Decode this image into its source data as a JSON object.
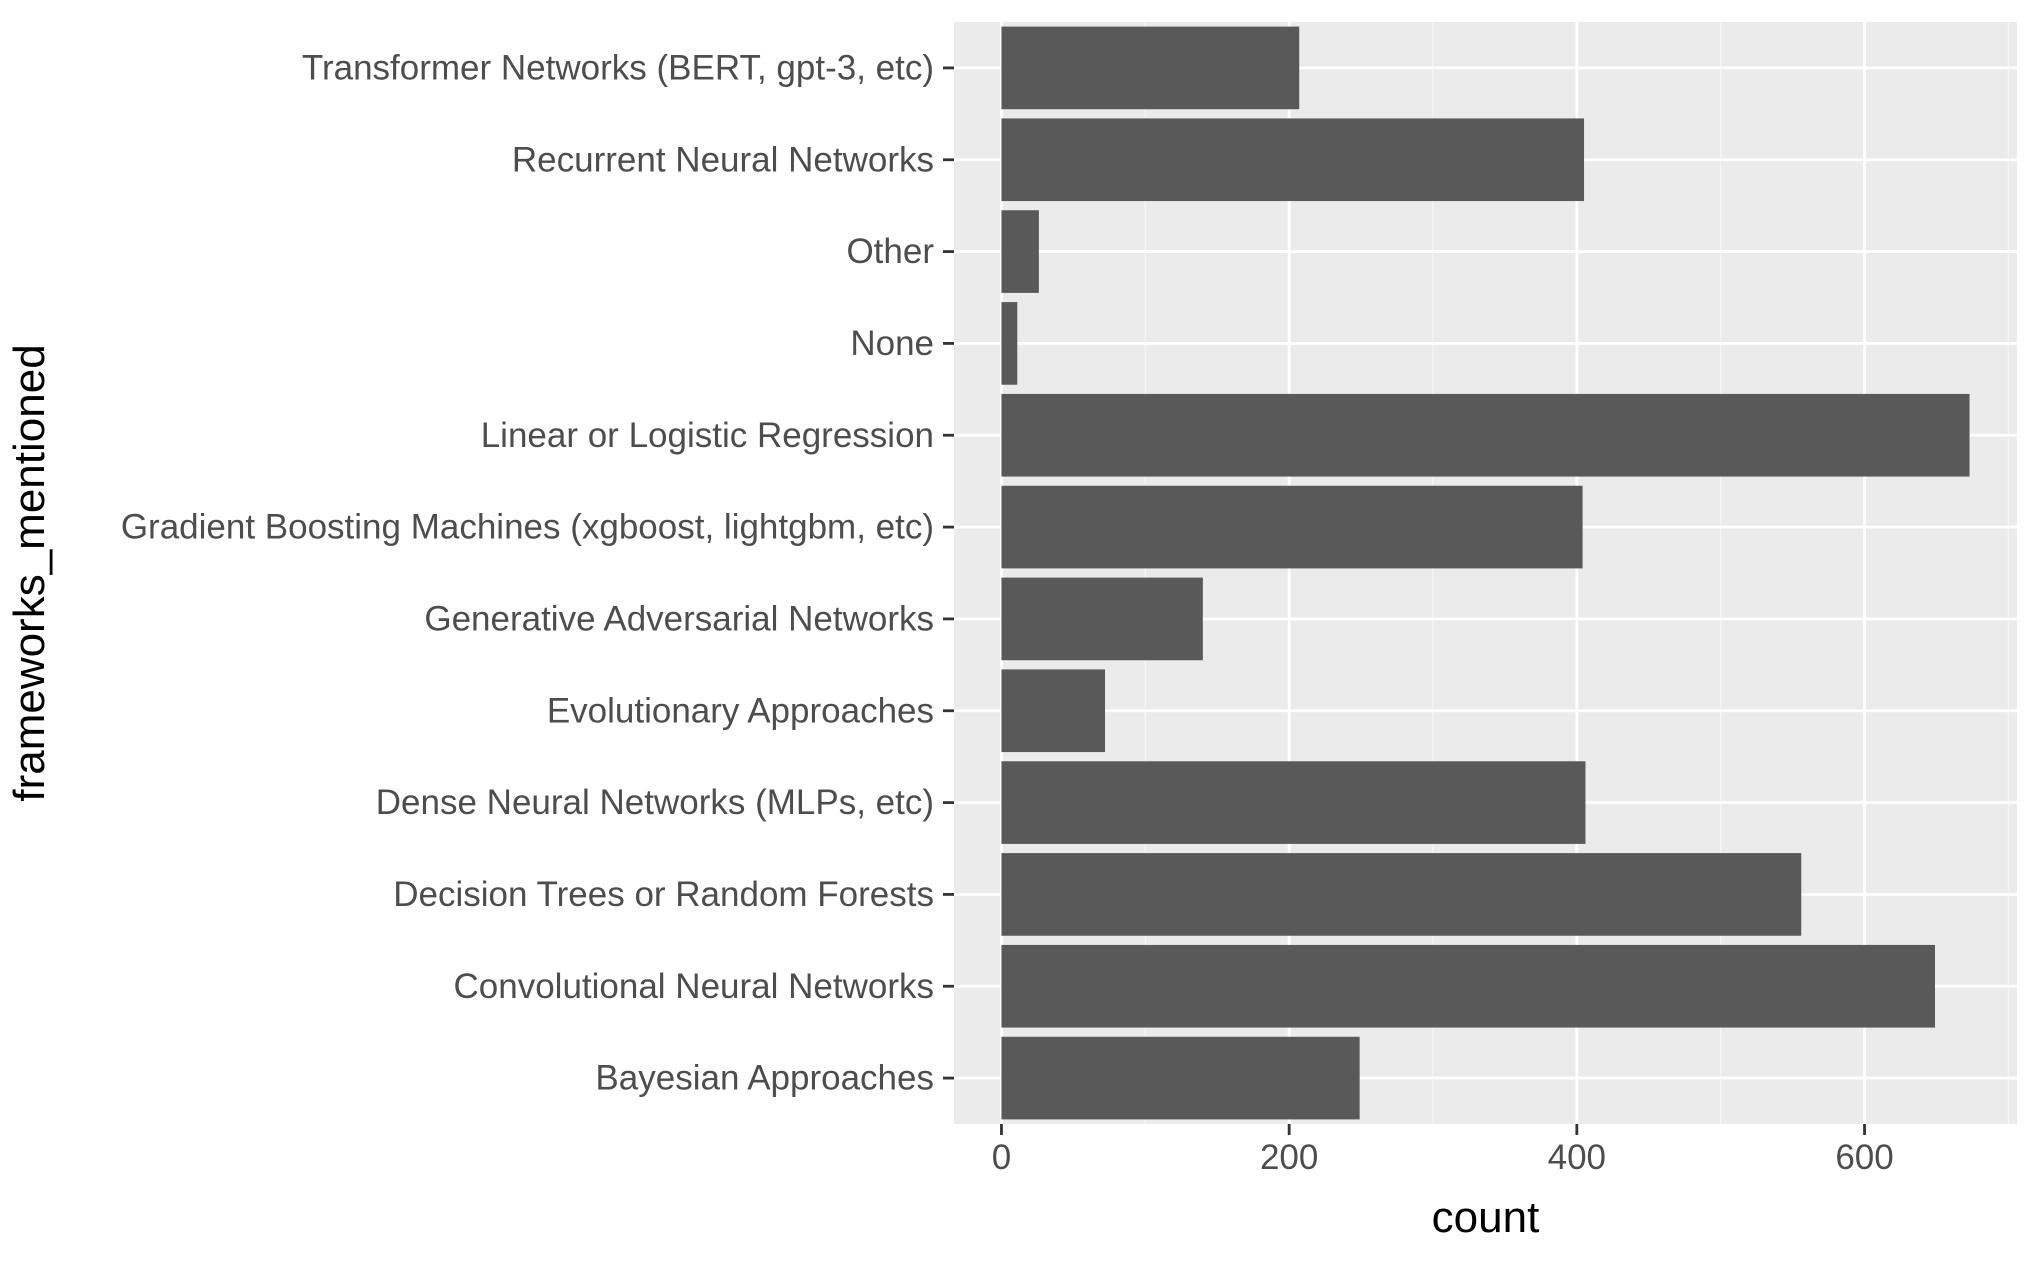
{
  "chart_data": {
    "type": "bar",
    "orientation": "horizontal",
    "categories": [
      "Transformer Networks (BERT, gpt-3, etc)",
      "Recurrent Neural Networks",
      "Other",
      "None",
      "Linear or Logistic Regression",
      "Gradient Boosting Machines (xgboost, lightgbm, etc)",
      "Generative Adversarial Networks",
      "Evolutionary Approaches",
      "Dense Neural Networks (MLPs, etc)",
      "Decision Trees or Random Forests",
      "Convolutional Neural Networks",
      "Bayesian Approaches"
    ],
    "values": [
      207,
      405,
      26,
      11,
      673,
      404,
      140,
      72,
      406,
      556,
      649,
      249
    ],
    "xlabel": "count",
    "ylabel": "frameworks_mentioned",
    "x_ticks": [
      0,
      200,
      400,
      600
    ],
    "xlim": [
      -33,
      706
    ],
    "grid": true,
    "colors": {
      "panel_background": "#ebebeb",
      "grid_major": "#ffffff",
      "grid_minor": "#f5f5f5",
      "bar": "#595959",
      "tick_text": "#4d4d4d",
      "tick_mark": "#333333",
      "title_text": "#000000"
    }
  }
}
